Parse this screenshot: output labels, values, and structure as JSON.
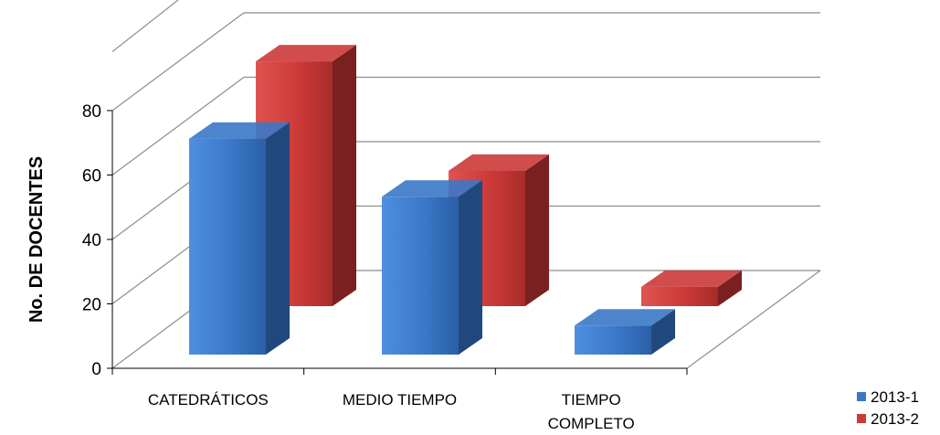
{
  "chart_data": {
    "type": "bar",
    "variant": "3d-clustered-column",
    "title": "",
    "xlabel": "",
    "ylabel": "No. DE DOCENTES",
    "categories": [
      "CATEDRÁTICOS",
      "MEDIO TIEMPO",
      "TIEMPO COMPLETO"
    ],
    "category_lines": [
      [
        "CATEDRÁTICOS"
      ],
      [
        "MEDIO TIEMPO"
      ],
      [
        "TIEMPO",
        "COMPLETO"
      ]
    ],
    "series": [
      {
        "name": "2013-1",
        "values": [
          67,
          49,
          9
        ],
        "color": "#3a78c8",
        "dark": "#21487d"
      },
      {
        "name": "2013-2",
        "values": [
          76,
          42,
          6
        ],
        "color": "#cc3a38",
        "dark": "#7a2020"
      }
    ],
    "yticks": [
      0,
      20,
      40,
      60,
      80
    ],
    "ylim": [
      0,
      80
    ],
    "grid": true,
    "legend_position": "bottom-right"
  }
}
